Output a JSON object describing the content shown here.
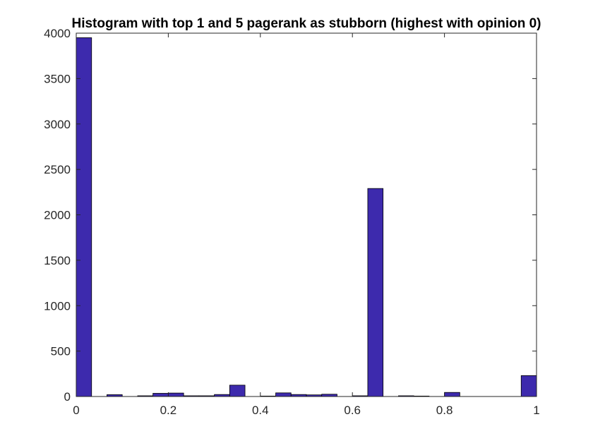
{
  "chart_data": {
    "type": "bar",
    "title": "Histogram with top 1 and 5 pagerank as stubborn (highest with opinion 0)",
    "xlabel": "",
    "ylabel": "",
    "xlim": [
      0,
      1
    ],
    "ylim": [
      0,
      4000
    ],
    "xticks": [
      0,
      0.2,
      0.4,
      0.6,
      0.8,
      1
    ],
    "xtick_labels": [
      "0",
      "0.2",
      "0.4",
      "0.6",
      "0.8",
      "1"
    ],
    "yticks": [
      0,
      500,
      1000,
      1500,
      2000,
      2500,
      3000,
      3500,
      4000
    ],
    "ytick_labels": [
      "0",
      "500",
      "1000",
      "1500",
      "2000",
      "2500",
      "3000",
      "3500",
      "4000"
    ],
    "grid": false,
    "legend": "none",
    "bin_width": 0.0333,
    "bin_centers": [
      0.0167,
      0.05,
      0.0833,
      0.1167,
      0.15,
      0.1833,
      0.2167,
      0.25,
      0.2833,
      0.3167,
      0.35,
      0.3833,
      0.4167,
      0.45,
      0.4833,
      0.5167,
      0.55,
      0.5833,
      0.6167,
      0.65,
      0.6833,
      0.7167,
      0.75,
      0.7833,
      0.8167,
      0.85,
      0.8833,
      0.9167,
      0.95,
      0.9833
    ],
    "values": [
      3950,
      0,
      20,
      0,
      8,
      35,
      38,
      8,
      8,
      22,
      125,
      0,
      5,
      40,
      22,
      18,
      25,
      0,
      8,
      2290,
      0,
      8,
      5,
      0,
      45,
      0,
      0,
      0,
      0,
      230
    ],
    "bar_color": "#3d2aad",
    "edge_color": "#000000"
  }
}
